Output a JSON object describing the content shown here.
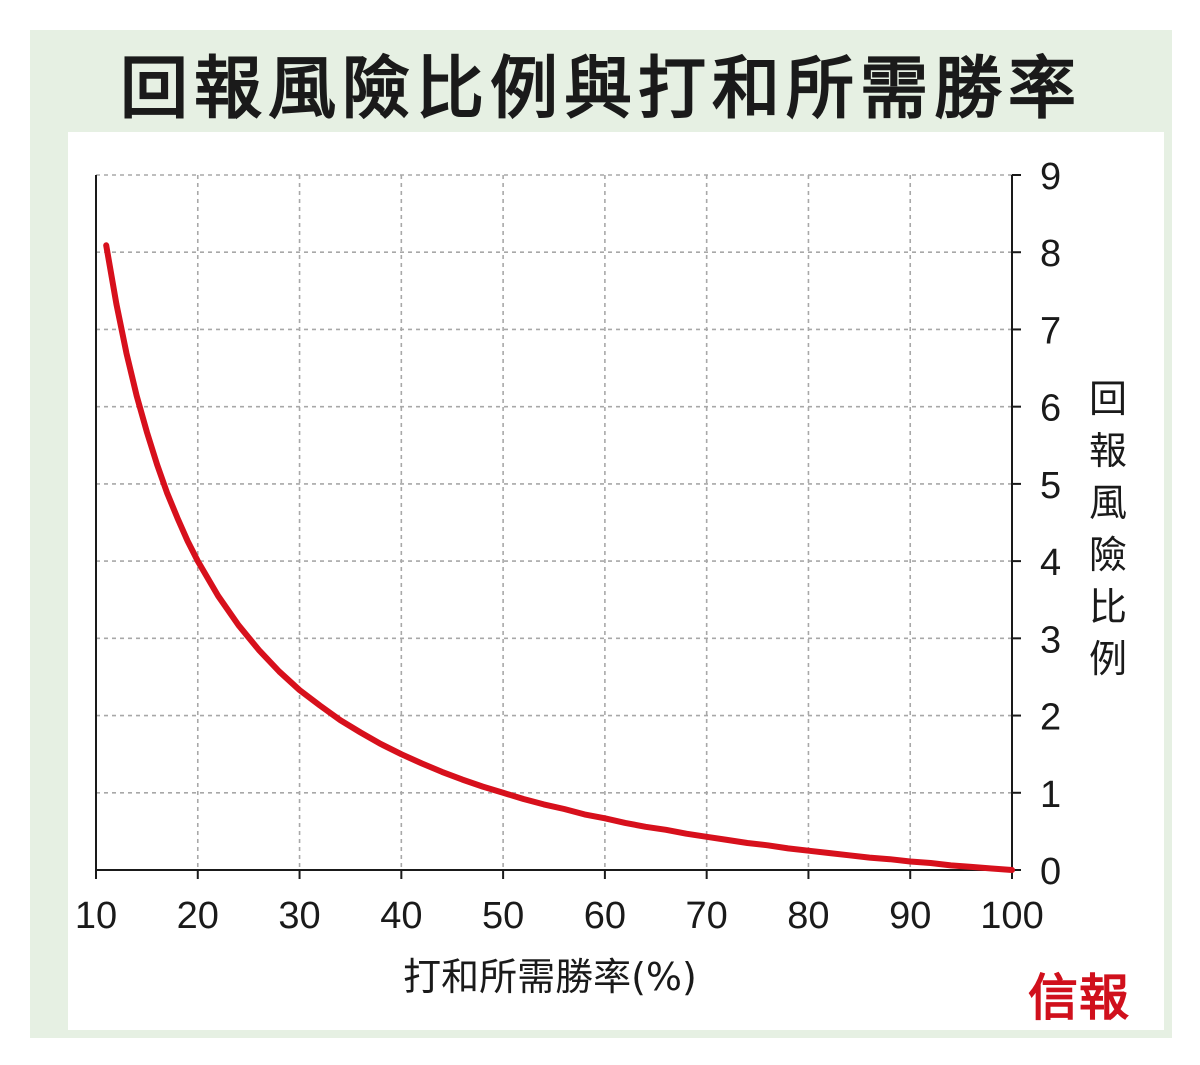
{
  "chart_data": {
    "type": "line",
    "title": "回報風險比例與打和所需勝率",
    "xlabel": "打和所需勝率(%)",
    "ylabel": "回報風險比例",
    "xlim": [
      10,
      100
    ],
    "ylim": [
      0,
      9
    ],
    "xticks": [
      10,
      20,
      30,
      40,
      50,
      60,
      70,
      80,
      90,
      100
    ],
    "yticks": [
      0,
      1,
      2,
      3,
      4,
      5,
      6,
      7,
      8,
      9
    ],
    "grid": true,
    "yaxis_position": "right",
    "series": [
      {
        "color": "#d7101c",
        "x": [
          11,
          12,
          13,
          14,
          15,
          16,
          17,
          18,
          19,
          20,
          22,
          24,
          26,
          28,
          30,
          32,
          34,
          36,
          38,
          40,
          42,
          44,
          46,
          48,
          50,
          52,
          54,
          56,
          58,
          60,
          62,
          64,
          66,
          68,
          70,
          72,
          74,
          76,
          78,
          80,
          82,
          84,
          86,
          88,
          90,
          92,
          94,
          96,
          98,
          100
        ],
        "y": [
          8.09,
          7.33,
          6.69,
          6.14,
          5.67,
          5.25,
          4.88,
          4.56,
          4.26,
          4.0,
          3.55,
          3.17,
          2.85,
          2.57,
          2.33,
          2.13,
          1.94,
          1.78,
          1.63,
          1.5,
          1.38,
          1.27,
          1.17,
          1.08,
          1.0,
          0.92,
          0.85,
          0.79,
          0.72,
          0.67,
          0.61,
          0.56,
          0.52,
          0.47,
          0.43,
          0.39,
          0.35,
          0.32,
          0.28,
          0.25,
          0.22,
          0.19,
          0.16,
          0.14,
          0.11,
          0.09,
          0.06,
          0.04,
          0.02,
          0.0
        ]
      }
    ]
  },
  "logo": {
    "text": "信報"
  }
}
